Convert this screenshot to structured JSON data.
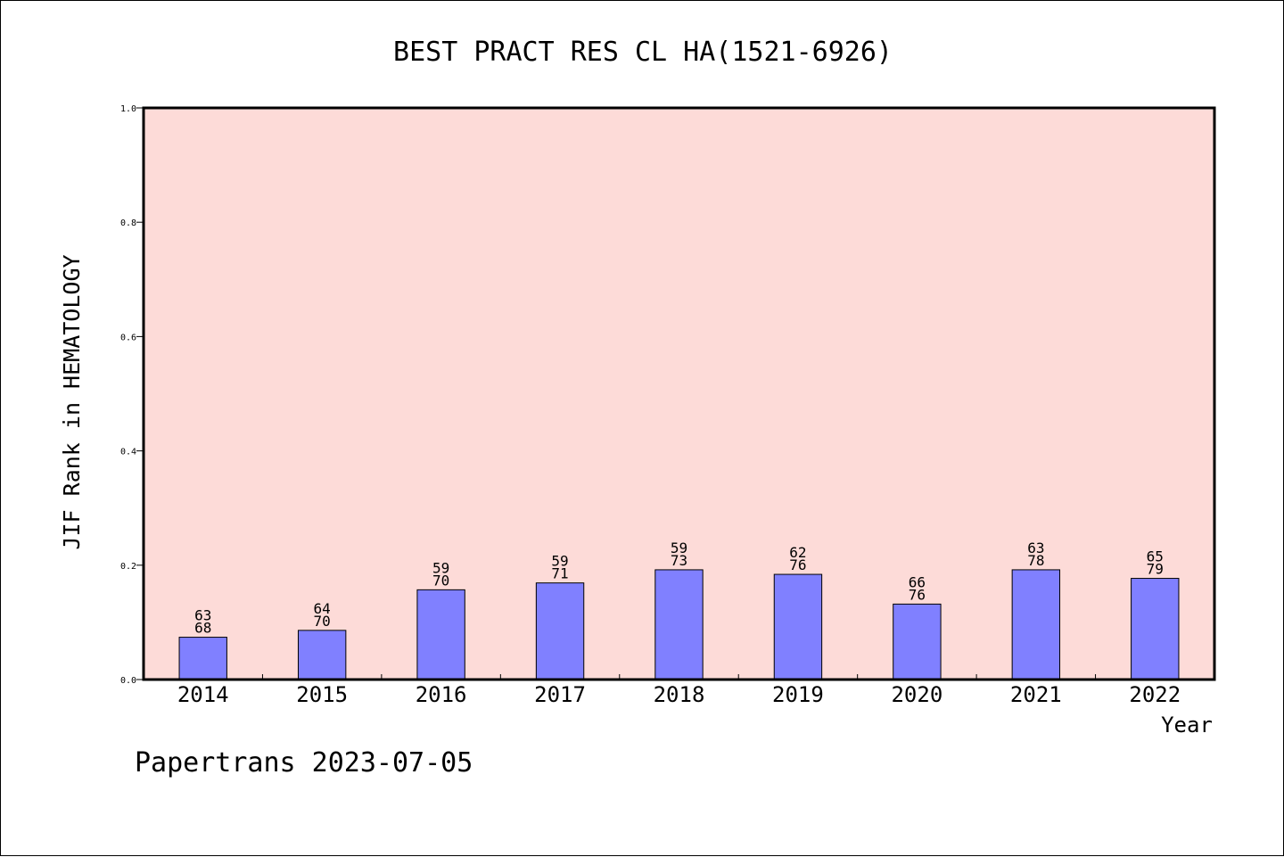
{
  "chart_data": {
    "type": "bar",
    "title": "BEST PRACT RES CL HA(1521-6926)",
    "xlabel": "Year",
    "ylabel": "JIF Rank in HEMATOLOGY",
    "ylim": [
      0,
      1.0
    ],
    "yticks": [
      "0.0",
      "0.2",
      "0.4",
      "0.6",
      "0.8",
      "1.0"
    ],
    "grid": false,
    "categories": [
      "2014",
      "2015",
      "2016",
      "2017",
      "2018",
      "2019",
      "2020",
      "2021",
      "2022"
    ],
    "values": [
      0.074,
      0.086,
      0.157,
      0.169,
      0.192,
      0.184,
      0.132,
      0.192,
      0.177
    ],
    "ranks": [
      "63",
      "64",
      "59",
      "59",
      "59",
      "62",
      "66",
      "63",
      "65"
    ],
    "totals": [
      "68",
      "70",
      "70",
      "71",
      "73",
      "76",
      "76",
      "78",
      "79"
    ],
    "colors": {
      "plot_background": "#fddbd8",
      "bar_fill": "#8080ff",
      "bar_stroke": "#000000"
    }
  },
  "footer": {
    "credit": "Papertrans 2023-07-05"
  }
}
